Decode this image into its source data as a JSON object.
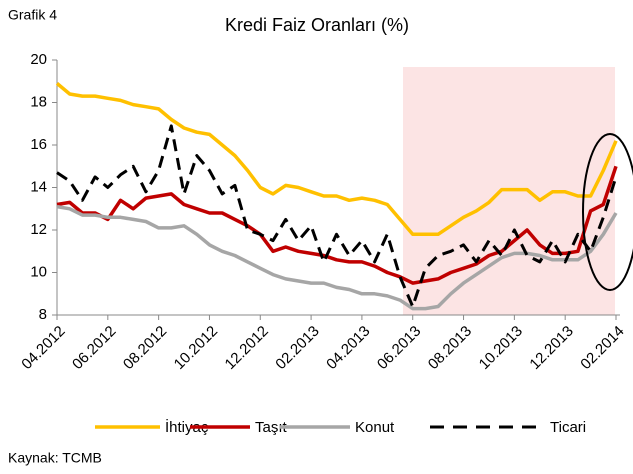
{
  "chart_data": {
    "type": "line",
    "label": "Grafik 4",
    "title": "Kredi Faiz Oranları (%)",
    "source": "Kaynak:  TCMB",
    "categories": [
      "04.2012",
      null,
      null,
      null,
      "06.2012",
      null,
      null,
      null,
      "08.2012",
      null,
      null,
      null,
      "10.2012",
      null,
      null,
      null,
      "12.2012",
      null,
      null,
      null,
      "02.2013",
      null,
      null,
      null,
      "04.2013",
      null,
      null,
      null,
      "06.2013",
      null,
      null,
      null,
      "08.2013",
      null,
      null,
      null,
      "10.2013",
      null,
      null,
      null,
      "12.2013",
      null,
      null,
      null,
      "02.2014"
    ],
    "series": [
      {
        "name": "İhtiyaç",
        "color": "#ffc000",
        "dash": false,
        "values": [
          18.9,
          18.4,
          18.3,
          18.3,
          18.2,
          18.1,
          17.9,
          17.8,
          17.7,
          17.2,
          16.8,
          16.6,
          16.5,
          16.0,
          15.5,
          14.8,
          14.0,
          13.7,
          14.1,
          14.0,
          13.8,
          13.6,
          13.6,
          13.4,
          13.5,
          13.4,
          13.2,
          12.5,
          11.8,
          11.8,
          11.8,
          12.2,
          12.6,
          12.9,
          13.3,
          13.9,
          13.9,
          13.9,
          13.4,
          13.8,
          13.8,
          13.6,
          13.6,
          14.8,
          16.2
        ]
      },
      {
        "name": "Taşıt",
        "color": "#c00000",
        "dash": false,
        "values": [
          13.2,
          13.3,
          12.8,
          12.8,
          12.5,
          13.4,
          13.0,
          13.5,
          13.6,
          13.7,
          13.2,
          13.0,
          12.8,
          12.8,
          12.5,
          12.2,
          11.8,
          11.0,
          11.2,
          11.0,
          10.9,
          10.8,
          10.6,
          10.5,
          10.5,
          10.3,
          10.0,
          9.8,
          9.5,
          9.6,
          9.7,
          10.0,
          10.2,
          10.4,
          10.8,
          11.0,
          11.5,
          12.0,
          11.3,
          10.9,
          10.9,
          11.0,
          12.9,
          13.2,
          15.0
        ]
      },
      {
        "name": "Konut",
        "color": "#a6a6a6",
        "dash": false,
        "values": [
          13.1,
          13.0,
          12.7,
          12.7,
          12.6,
          12.6,
          12.5,
          12.4,
          12.1,
          12.1,
          12.2,
          11.8,
          11.3,
          11.0,
          10.8,
          10.5,
          10.2,
          9.9,
          9.7,
          9.6,
          9.5,
          9.5,
          9.3,
          9.2,
          9.0,
          9.0,
          8.9,
          8.7,
          8.3,
          8.3,
          8.4,
          9.0,
          9.5,
          9.9,
          10.3,
          10.7,
          10.9,
          10.9,
          10.8,
          10.6,
          10.6,
          10.6,
          11.0,
          11.8,
          12.8
        ]
      },
      {
        "name": "Ticari",
        "color": "#000000",
        "dash": true,
        "values": [
          14.7,
          14.3,
          13.4,
          14.5,
          14.0,
          14.6,
          15.0,
          13.8,
          14.8,
          16.9,
          13.7,
          15.5,
          14.8,
          13.7,
          14.1,
          12.0,
          11.8,
          11.5,
          12.5,
          11.5,
          12.2,
          10.5,
          11.8,
          10.8,
          11.5,
          10.5,
          11.8,
          9.8,
          8.4,
          10.2,
          10.8,
          11.0,
          11.3,
          10.5,
          11.5,
          10.8,
          12.0,
          10.8,
          10.5,
          11.5,
          10.5,
          11.8,
          11.0,
          12.6,
          14.5
        ]
      }
    ],
    "ylim": [
      8,
      20
    ],
    "yticks": [
      8,
      10,
      12,
      14,
      16,
      18,
      20
    ],
    "grid": false,
    "legend": "bottom"
  }
}
